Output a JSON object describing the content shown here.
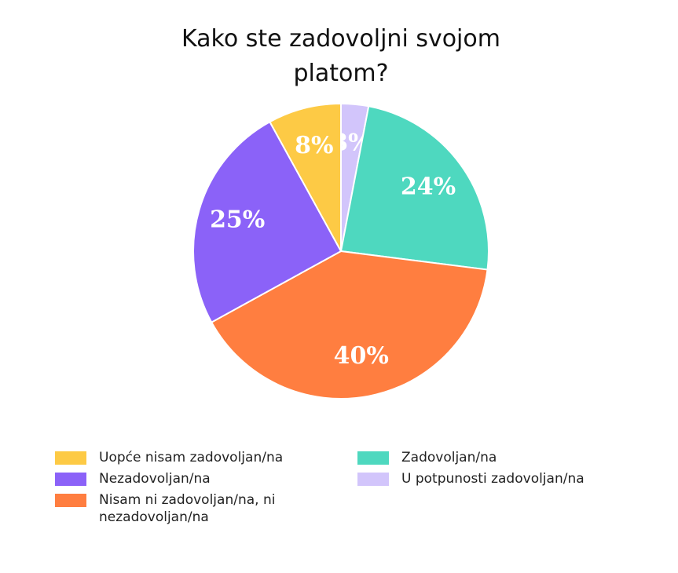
{
  "chart_data": {
    "type": "pie",
    "title": "Kako ste zadovoljni svojom platom?",
    "categories": [
      "Uopće nisam zadovoljan/na",
      "Nezadovoljan/na",
      "Nisam ni zadovoljan/na, ni nezadovoljan/na",
      "Zadovoljan/na",
      "U potpunosti zadovoljan/na"
    ],
    "values": [
      8,
      25,
      40,
      24,
      3
    ],
    "value_labels": [
      "8%",
      "25%",
      "40%",
      "24%",
      "3%"
    ],
    "colors": [
      "#fdca45",
      "#8b62f8",
      "#ff7e40",
      "#4ed8bf",
      "#d2c5fb"
    ]
  }
}
